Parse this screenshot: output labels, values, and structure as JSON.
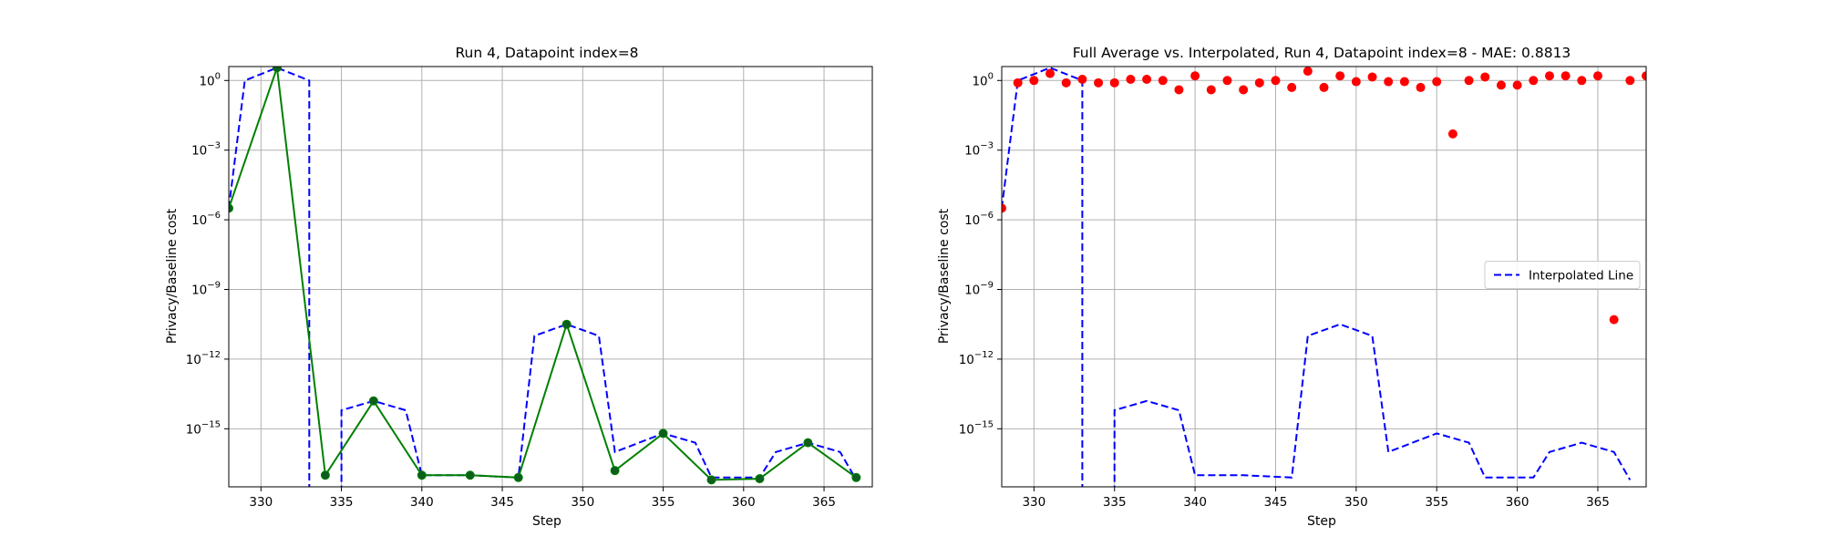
{
  "chart_data": [
    {
      "type": "line",
      "title": "Run 4, Datapoint index=8",
      "xlabel": "Step",
      "ylabel": "Privacy/Baseline cost",
      "xlim": [
        328,
        368
      ],
      "ylim_log10": [
        -17.5,
        0.6
      ],
      "yscale": "log",
      "grid": true,
      "x_ticks": [
        330,
        335,
        340,
        345,
        350,
        355,
        360,
        365
      ],
      "y_ticks": [
        {
          "exp": 0,
          "label": "10^0"
        },
        {
          "exp": -3,
          "label": "10^-3"
        },
        {
          "exp": -6,
          "label": "10^-6"
        },
        {
          "exp": -9,
          "label": "10^-9"
        },
        {
          "exp": -12,
          "label": "10^-12"
        },
        {
          "exp": -15,
          "label": "10^-15"
        }
      ],
      "series": [
        {
          "style": "dashed-line",
          "color": "#0000ff",
          "x": [
            328,
            329,
            331,
            333,
            333,
            335,
            335,
            337,
            339,
            340,
            343,
            346,
            347,
            349,
            351,
            352,
            355,
            357,
            358,
            361,
            362,
            364,
            366,
            367
          ],
          "log10_y": [
            -5.5,
            0.0,
            0.55,
            0.0,
            -19.0,
            -19.0,
            -14.2,
            -13.8,
            -14.2,
            -17.0,
            -17.0,
            -17.1,
            -11.0,
            -10.5,
            -11.0,
            -16.0,
            -15.2,
            -15.6,
            -17.1,
            -17.1,
            -16.0,
            -15.6,
            -16.0,
            -17.2
          ]
        },
        {
          "style": "solid-line-markers",
          "color": "#008000",
          "marker_color": "#0d5e1f",
          "x": [
            328,
            331,
            334,
            337,
            340,
            343,
            346,
            349,
            352,
            355,
            358,
            361,
            364,
            367
          ],
          "log10_y": [
            -5.5,
            0.55,
            -17.0,
            -13.8,
            -17.0,
            -17.0,
            -17.1,
            -10.5,
            -16.8,
            -15.2,
            -17.2,
            -17.15,
            -15.6,
            -17.1
          ]
        }
      ]
    },
    {
      "type": "line",
      "title": "Full Average vs. Interpolated, Run 4, Datapoint index=8 - MAE: 0.8813",
      "xlabel": "Step",
      "ylabel": "Privacy/Baseline cost",
      "xlim": [
        328,
        368
      ],
      "ylim_log10": [
        -17.5,
        0.6
      ],
      "yscale": "log",
      "grid": true,
      "legend_position": "center-right",
      "x_ticks": [
        330,
        335,
        340,
        345,
        350,
        355,
        360,
        365
      ],
      "y_ticks": [
        {
          "exp": 0,
          "label": "10^0"
        },
        {
          "exp": -3,
          "label": "10^-3"
        },
        {
          "exp": -6,
          "label": "10^-6"
        },
        {
          "exp": -9,
          "label": "10^-9"
        },
        {
          "exp": -12,
          "label": "10^-12"
        },
        {
          "exp": -15,
          "label": "10^-15"
        }
      ],
      "series": [
        {
          "name": "Interpolated Line",
          "style": "dashed-line",
          "color": "#0000ff",
          "x": [
            328,
            329,
            331,
            333,
            333,
            335,
            335,
            337,
            339,
            340,
            343,
            346,
            347,
            349,
            351,
            352,
            355,
            357,
            358,
            361,
            362,
            364,
            366,
            367
          ],
          "log10_y": [
            -5.5,
            0.0,
            0.55,
            0.0,
            -19.0,
            -19.0,
            -14.2,
            -13.8,
            -14.2,
            -17.0,
            -17.0,
            -17.1,
            -11.0,
            -10.5,
            -11.0,
            -16.0,
            -15.2,
            -15.6,
            -17.1,
            -17.1,
            -16.0,
            -15.6,
            -16.0,
            -17.2
          ]
        },
        {
          "style": "scatter",
          "color": "#ff0000",
          "x": [
            328,
            329,
            330,
            331,
            332,
            333,
            334,
            335,
            336,
            337,
            338,
            339,
            340,
            341,
            342,
            343,
            344,
            345,
            346,
            347,
            348,
            349,
            350,
            351,
            352,
            353,
            354,
            355,
            356,
            357,
            358,
            359,
            360,
            361,
            362,
            363,
            364,
            365,
            366,
            367,
            368
          ],
          "log10_y": [
            -5.5,
            -0.1,
            0.0,
            0.3,
            -0.1,
            0.05,
            -0.1,
            -0.1,
            0.05,
            0.05,
            0.0,
            -0.4,
            0.2,
            -0.4,
            0.0,
            -0.4,
            -0.1,
            0.0,
            -0.3,
            0.4,
            -0.3,
            0.2,
            -0.05,
            0.15,
            -0.05,
            -0.05,
            -0.3,
            -0.05,
            -2.3,
            0.0,
            0.15,
            -0.2,
            -0.2,
            0.0,
            0.2,
            0.2,
            0.0,
            0.2,
            -10.3,
            0.0,
            0.2
          ]
        }
      ]
    }
  ]
}
